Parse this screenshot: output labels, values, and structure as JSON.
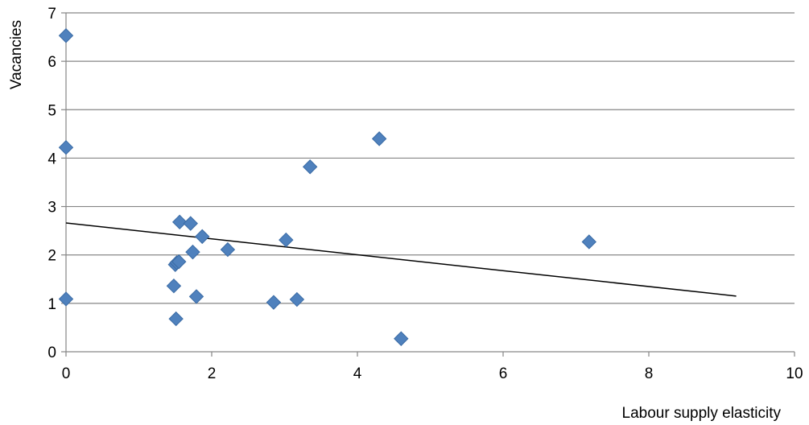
{
  "chart_data": {
    "type": "scatter",
    "title": "",
    "xlabel": "Labour supply elasticity",
    "ylabel": "Vacancies",
    "xlim": [
      0,
      10
    ],
    "ylim": [
      0,
      7
    ],
    "xticks": [
      0,
      2,
      4,
      6,
      8,
      10
    ],
    "yticks": [
      0,
      1,
      2,
      3,
      4,
      5,
      6,
      7
    ],
    "grid": "horizontal",
    "legend": "none",
    "marker": "diamond",
    "colors": {
      "marker": "#4F81BD",
      "marker_edge": "#3A6BA5",
      "trendline": "#000000",
      "grid": "#868686",
      "axis": "#868686"
    },
    "series": [
      {
        "x": [
          0.0,
          0.0,
          0.0,
          1.48,
          1.5,
          1.51,
          1.52,
          1.55,
          1.56,
          1.71,
          1.74,
          1.79,
          1.87,
          2.22,
          2.85,
          3.02,
          3.17,
          3.35,
          4.3,
          4.6,
          7.18
        ],
        "y": [
          6.53,
          4.22,
          1.09,
          1.36,
          1.8,
          0.68,
          1.84,
          1.86,
          2.68,
          2.65,
          2.06,
          1.14,
          2.38,
          2.11,
          1.02,
          2.31,
          1.08,
          3.82,
          4.4,
          0.27,
          2.27
        ]
      }
    ],
    "trendline": {
      "type": "linear",
      "x": [
        0,
        9.2
      ],
      "y": [
        2.66,
        1.15
      ]
    }
  }
}
